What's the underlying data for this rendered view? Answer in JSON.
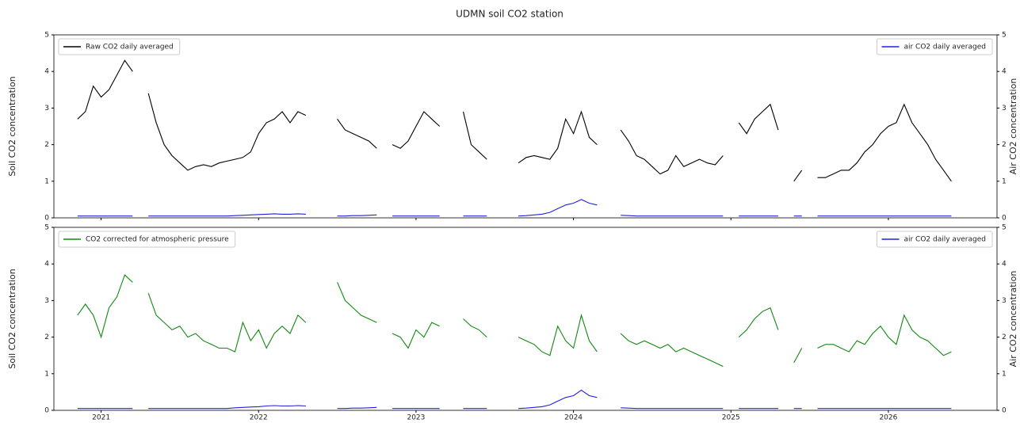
{
  "title": "UDMN soil CO2 station",
  "chart_data": [
    {
      "type": "line",
      "ylabel": "Soil CO2 concentration",
      "y2label": "Air CO2 concentration",
      "xlim": [
        2020.7,
        2026.69
      ],
      "ylim": [
        0,
        5
      ],
      "yticks": [
        0,
        1,
        2,
        3,
        4,
        5
      ],
      "y2lim": [
        0,
        5
      ],
      "y2ticks": [
        0,
        1,
        2,
        3,
        4,
        5
      ],
      "legend": "upper left",
      "y2_legend": "upper right",
      "x": [
        2020.85,
        2020.9,
        2020.95,
        2021,
        2021.05,
        2021.1,
        2021.15,
        2021.2,
        2021.25,
        2021.3,
        2021.35,
        2021.4,
        2021.45,
        2021.5,
        2021.55,
        2021.6,
        2021.65,
        2021.7,
        2021.75,
        2021.8,
        2021.85,
        2021.9,
        2021.95,
        2022,
        2022.05,
        2022.1,
        2022.15,
        2022.2,
        2022.25,
        2022.3,
        2022.35,
        2022.4,
        2022.45,
        2022.5,
        2022.55,
        2022.6,
        2022.65,
        2022.7,
        2022.75,
        2022.8,
        2022.85,
        2022.9,
        2022.95,
        2023,
        2023.05,
        2023.1,
        2023.15,
        2023.2,
        2023.25,
        2023.3,
        2023.35,
        2023.4,
        2023.45,
        2023.5,
        2023.55,
        2023.6,
        2023.65,
        2023.7,
        2023.75,
        2023.8,
        2023.85,
        2023.9,
        2023.95,
        2024,
        2024.05,
        2024.1,
        2024.15,
        2024.2,
        2024.25,
        2024.3,
        2024.35,
        2024.4,
        2024.45,
        2024.5,
        2024.55,
        2024.6,
        2024.65,
        2024.7,
        2024.75,
        2024.8,
        2024.85,
        2024.9,
        2024.95,
        2025,
        2025.05,
        2025.1,
        2025.15,
        2025.2,
        2025.25,
        2025.3,
        2025.35,
        2025.4,
        2025.45,
        2025.5,
        2025.55,
        2025.6,
        2025.65,
        2025.7,
        2025.75,
        2025.8,
        2025.85,
        2025.9,
        2025.95,
        2026,
        2026.05,
        2026.1,
        2026.15,
        2026.2,
        2026.25,
        2026.3,
        2026.35,
        2026.4
      ],
      "series": [
        {
          "name": "Raw CO2 daily averaged",
          "color": "#000000",
          "values": [
            2.7,
            2.9,
            3.6,
            3.3,
            3.5,
            3.9,
            4.3,
            4.0,
            null,
            3.4,
            2.6,
            2.0,
            1.7,
            1.5,
            1.3,
            1.4,
            1.45,
            1.4,
            1.5,
            1.55,
            1.6,
            1.65,
            1.8,
            2.3,
            2.6,
            2.7,
            2.9,
            2.6,
            2.9,
            2.8,
            null,
            null,
            null,
            2.7,
            2.4,
            2.3,
            2.2,
            2.1,
            1.9,
            null,
            2.0,
            1.9,
            2.1,
            2.5,
            2.9,
            2.7,
            2.5,
            null,
            null,
            2.9,
            2.0,
            1.8,
            1.6,
            null,
            null,
            null,
            1.5,
            1.65,
            1.7,
            1.65,
            1.6,
            1.9,
            2.7,
            2.3,
            2.9,
            2.2,
            2.0,
            null,
            null,
            2.4,
            2.1,
            1.7,
            1.6,
            1.4,
            1.2,
            1.3,
            1.7,
            1.4,
            1.5,
            1.6,
            1.5,
            1.45,
            1.7,
            null,
            2.6,
            2.3,
            2.7,
            2.9,
            3.1,
            2.4,
            null,
            1.0,
            1.3,
            null,
            1.1,
            1.1,
            1.2,
            1.3,
            1.3,
            1.5,
            1.8,
            2.0,
            2.3,
            2.5,
            2.6,
            3.1,
            2.6,
            2.3,
            2.0,
            1.6,
            1.3,
            1.0
          ]
        },
        {
          "name": "air CO2 daily averaged",
          "color": "#2020e0",
          "axis": "y2",
          "values": [
            0.05,
            0.05,
            0.05,
            0.05,
            0.05,
            0.05,
            0.05,
            0.05,
            null,
            0.05,
            0.05,
            0.05,
            0.05,
            0.05,
            0.05,
            0.05,
            0.05,
            0.05,
            0.05,
            0.05,
            0.06,
            0.07,
            0.08,
            0.09,
            0.1,
            0.11,
            0.1,
            0.1,
            0.11,
            0.1,
            null,
            null,
            null,
            0.05,
            0.05,
            0.06,
            0.06,
            0.07,
            0.08,
            null,
            0.05,
            0.05,
            0.05,
            0.05,
            0.05,
            0.05,
            0.05,
            null,
            null,
            0.05,
            0.05,
            0.05,
            0.05,
            null,
            null,
            null,
            0.05,
            0.06,
            0.08,
            0.1,
            0.15,
            0.25,
            0.35,
            0.4,
            0.5,
            0.4,
            0.35,
            null,
            null,
            0.07,
            0.06,
            0.05,
            0.05,
            0.05,
            0.05,
            0.05,
            0.05,
            0.05,
            0.05,
            0.05,
            0.05,
            0.05,
            0.05,
            null,
            0.05,
            0.05,
            0.05,
            0.05,
            0.05,
            0.05,
            null,
            0.05,
            0.05,
            null,
            0.05,
            0.05,
            0.05,
            0.05,
            0.05,
            0.05,
            0.05,
            0.05,
            0.05,
            0.05,
            0.05,
            0.05,
            0.05,
            0.05,
            0.05,
            0.05,
            0.05,
            0.05
          ]
        }
      ]
    },
    {
      "type": "line",
      "ylabel": "Soil CO2 concentration",
      "y2label": "Air CO2 concentration",
      "xlim": [
        2020.7,
        2026.69
      ],
      "xticks": [
        2021,
        2022,
        2023,
        2024,
        2025,
        2026
      ],
      "ylim": [
        0,
        5
      ],
      "yticks": [
        0,
        1,
        2,
        3,
        4,
        5
      ],
      "y2lim": [
        0,
        5
      ],
      "y2ticks": [
        0,
        1,
        2,
        3,
        4,
        5
      ],
      "legend": "upper left",
      "y2_legend": "upper right",
      "x": [
        2020.85,
        2020.9,
        2020.95,
        2021,
        2021.05,
        2021.1,
        2021.15,
        2021.2,
        2021.25,
        2021.3,
        2021.35,
        2021.4,
        2021.45,
        2021.5,
        2021.55,
        2021.6,
        2021.65,
        2021.7,
        2021.75,
        2021.8,
        2021.85,
        2021.9,
        2021.95,
        2022,
        2022.05,
        2022.1,
        2022.15,
        2022.2,
        2022.25,
        2022.3,
        2022.35,
        2022.4,
        2022.45,
        2022.5,
        2022.55,
        2022.6,
        2022.65,
        2022.7,
        2022.75,
        2022.8,
        2022.85,
        2022.9,
        2022.95,
        2023,
        2023.05,
        2023.1,
        2023.15,
        2023.2,
        2023.25,
        2023.3,
        2023.35,
        2023.4,
        2023.45,
        2023.5,
        2023.55,
        2023.6,
        2023.65,
        2023.7,
        2023.75,
        2023.8,
        2023.85,
        2023.9,
        2023.95,
        2024,
        2024.05,
        2024.1,
        2024.15,
        2024.2,
        2024.25,
        2024.3,
        2024.35,
        2024.4,
        2024.45,
        2024.5,
        2024.55,
        2024.6,
        2024.65,
        2024.7,
        2024.75,
        2024.8,
        2024.85,
        2024.9,
        2024.95,
        2025,
        2025.05,
        2025.1,
        2025.15,
        2025.2,
        2025.25,
        2025.3,
        2025.35,
        2025.4,
        2025.45,
        2025.5,
        2025.55,
        2025.6,
        2025.65,
        2025.7,
        2025.75,
        2025.8,
        2025.85,
        2025.9,
        2025.95,
        2026,
        2026.05,
        2026.1,
        2026.15,
        2026.2,
        2026.25,
        2026.3,
        2026.35,
        2026.4
      ],
      "series": [
        {
          "name": "CO2 corrected for atmospheric pressure",
          "color": "#118811",
          "values": [
            2.6,
            2.9,
            2.6,
            2.0,
            2.8,
            3.1,
            3.7,
            3.5,
            null,
            3.2,
            2.6,
            2.4,
            2.2,
            2.3,
            2.0,
            2.1,
            1.9,
            1.8,
            1.7,
            1.7,
            1.6,
            2.4,
            1.9,
            2.2,
            1.7,
            2.1,
            2.3,
            2.1,
            2.6,
            2.4,
            null,
            null,
            null,
            3.5,
            3.0,
            2.8,
            2.6,
            2.5,
            2.4,
            null,
            2.1,
            2.0,
            1.7,
            2.2,
            2.0,
            2.4,
            2.3,
            null,
            null,
            2.5,
            2.3,
            2.2,
            2.0,
            null,
            null,
            null,
            2.0,
            1.9,
            1.8,
            1.6,
            1.5,
            2.3,
            1.9,
            1.7,
            2.6,
            1.9,
            1.6,
            null,
            null,
            2.1,
            1.9,
            1.8,
            1.9,
            1.8,
            1.7,
            1.8,
            1.6,
            1.7,
            1.6,
            1.5,
            1.4,
            1.3,
            1.2,
            null,
            2.0,
            2.2,
            2.5,
            2.7,
            2.8,
            2.2,
            null,
            1.3,
            1.7,
            null,
            1.7,
            1.8,
            1.8,
            1.7,
            1.6,
            1.9,
            1.8,
            2.1,
            2.3,
            2.0,
            1.8,
            2.6,
            2.2,
            2.0,
            1.9,
            1.7,
            1.5,
            1.6
          ]
        },
        {
          "name": "air CO2 daily averaged",
          "color": "#2020e0",
          "axis": "y2",
          "values": [
            0.05,
            0.05,
            0.05,
            0.05,
            0.05,
            0.05,
            0.05,
            0.05,
            null,
            0.05,
            0.05,
            0.05,
            0.05,
            0.05,
            0.05,
            0.05,
            0.05,
            0.05,
            0.05,
            0.05,
            0.07,
            0.08,
            0.09,
            0.1,
            0.12,
            0.13,
            0.12,
            0.12,
            0.13,
            0.12,
            null,
            null,
            null,
            0.05,
            0.05,
            0.06,
            0.06,
            0.07,
            0.08,
            null,
            0.05,
            0.05,
            0.05,
            0.05,
            0.05,
            0.05,
            0.05,
            null,
            null,
            0.05,
            0.05,
            0.05,
            0.05,
            null,
            null,
            null,
            0.05,
            0.06,
            0.08,
            0.1,
            0.15,
            0.25,
            0.35,
            0.4,
            0.55,
            0.4,
            0.35,
            null,
            null,
            0.07,
            0.06,
            0.05,
            0.05,
            0.05,
            0.05,
            0.05,
            0.05,
            0.05,
            0.05,
            0.05,
            0.05,
            0.05,
            0.05,
            null,
            0.05,
            0.05,
            0.05,
            0.05,
            0.05,
            0.05,
            null,
            0.05,
            0.05,
            null,
            0.05,
            0.05,
            0.05,
            0.05,
            0.05,
            0.05,
            0.05,
            0.05,
            0.05,
            0.05,
            0.05,
            0.05,
            0.05,
            0.05,
            0.05,
            0.05,
            0.05,
            0.05
          ]
        }
      ]
    }
  ]
}
